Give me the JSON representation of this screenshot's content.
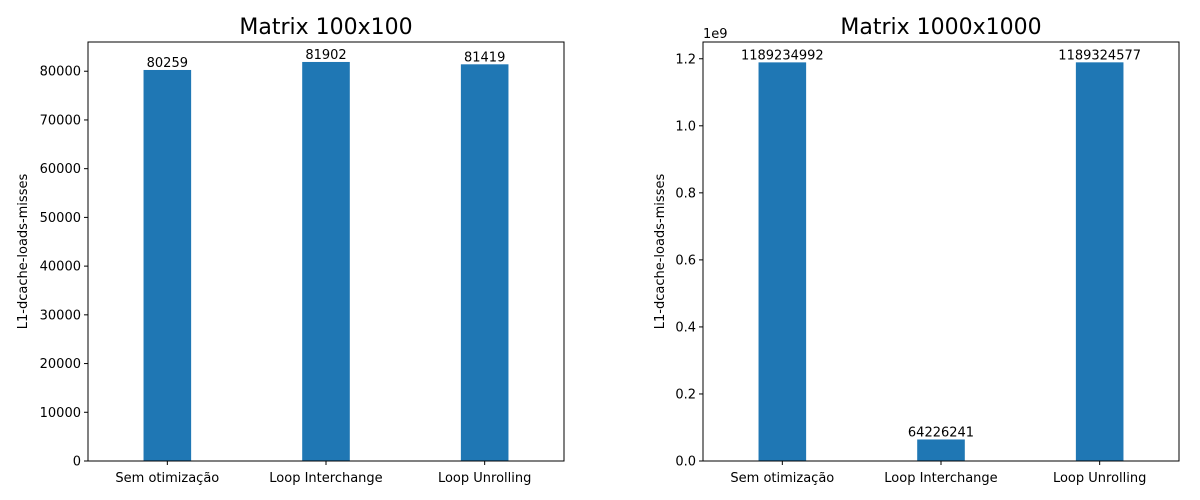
{
  "chart_data": [
    {
      "type": "bar",
      "title": "Matrix 100x100",
      "xlabel": "",
      "ylabel": "L1-dcache-loads-misses",
      "categories": [
        "Sem otimização",
        "Loop Interchange",
        "Loop Unrolling"
      ],
      "values": [
        80259,
        81902,
        81419
      ],
      "data_labels": [
        "80259",
        "81902",
        "81419"
      ],
      "ylim": [
        0,
        86000
      ],
      "yticks": [
        0,
        10000,
        20000,
        30000,
        40000,
        50000,
        60000,
        70000,
        80000
      ],
      "ytick_labels": [
        "0",
        "10000",
        "20000",
        "30000",
        "40000",
        "50000",
        "60000",
        "70000",
        "80000"
      ],
      "offset_text": "",
      "bar_color": "#1f77b4",
      "grid": false,
      "legend": "none"
    },
    {
      "type": "bar",
      "title": "Matrix 1000x1000",
      "xlabel": "",
      "ylabel": "L1-dcache-loads-misses",
      "categories": [
        "Sem otimização",
        "Loop Interchange",
        "Loop Unrolling"
      ],
      "values": [
        1189234992,
        64226241,
        1189324577
      ],
      "data_labels": [
        "1189234992",
        "64226241",
        "1189324577"
      ],
      "ylim": [
        0,
        1250000000
      ],
      "yticks": [
        0,
        200000000,
        400000000,
        600000000,
        800000000,
        1000000000,
        1200000000
      ],
      "ytick_labels": [
        "0.0",
        "0.2",
        "0.4",
        "0.6",
        "0.8",
        "1.0",
        "1.2"
      ],
      "offset_text": "1e9",
      "bar_color": "#1f77b4",
      "grid": false,
      "legend": "none"
    }
  ]
}
